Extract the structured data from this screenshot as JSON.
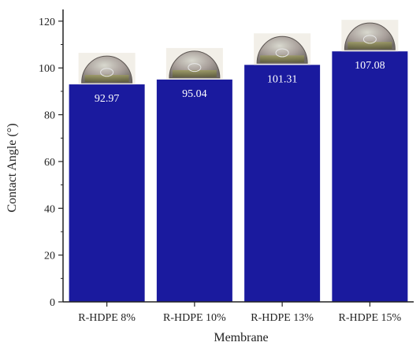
{
  "chart_data": {
    "type": "bar",
    "title": "",
    "xlabel": "Membrane",
    "ylabel": "Contact Angle (°)",
    "categories": [
      "R-HDPE 8%",
      "R-HDPE 10%",
      "R-HDPE 13%",
      "R-HDPE 15%"
    ],
    "values": [
      92.97,
      95.04,
      101.31,
      107.08
    ],
    "value_labels": [
      "92.97",
      "95.04",
      "101.31",
      "107.08"
    ],
    "ylim": [
      0,
      125
    ],
    "yticks": [
      "0",
      "20",
      "40",
      "60",
      "80",
      "100",
      "120"
    ],
    "grid": false,
    "legend": "none",
    "colors": {
      "bar": "#1a1a9e",
      "axis": "#222222"
    },
    "bar_top_image": "droplet-photo"
  }
}
